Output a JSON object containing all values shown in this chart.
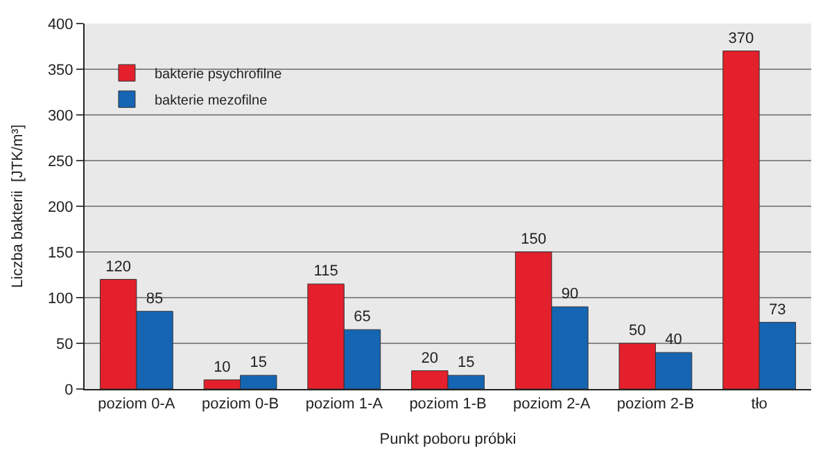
{
  "chart_data": {
    "type": "bar",
    "xlabel": "Punkt poboru próbki",
    "ylabel": "Liczba bakterii  [JTK/m³]",
    "categories": [
      "poziom 0-A",
      "poziom 0-B",
      "poziom 1-A",
      "poziom 1-B",
      "poziom 2-A",
      "poziom 2-B",
      "tło"
    ],
    "series": [
      {
        "name": "bakterie psychrofilne",
        "color": "#e3202b",
        "values": [
          120,
          10,
          115,
          20,
          150,
          50,
          370
        ]
      },
      {
        "name": "bakterie mezofilne",
        "color": "#1565b3",
        "values": [
          85,
          15,
          65,
          15,
          90,
          40,
          73
        ]
      }
    ],
    "ylim": [
      0,
      400
    ],
    "yticks": [
      0,
      50,
      100,
      150,
      200,
      250,
      300,
      350,
      400
    ],
    "grid": "y",
    "legend": "top left",
    "data_labels": true
  }
}
